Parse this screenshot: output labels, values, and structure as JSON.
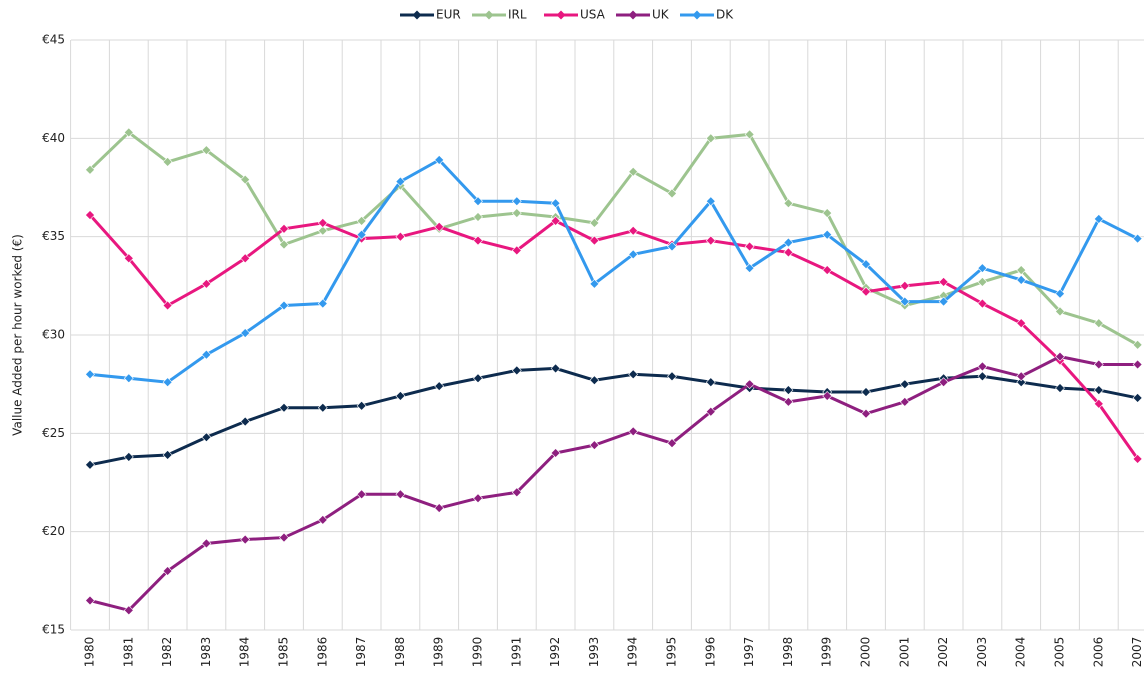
{
  "chart_data": {
    "type": "line",
    "y_label": "Vallue Added per hour worked (€)",
    "categories": [
      "1980",
      "1981",
      "1982",
      "1983",
      "1984",
      "1985",
      "1986",
      "1987",
      "1988",
      "1989",
      "1990",
      "1991",
      "1992",
      "1993",
      "1994",
      "1995",
      "1996",
      "1997",
      "1998",
      "1999",
      "2000",
      "2001",
      "2002",
      "2003",
      "2004",
      "2005",
      "2006",
      "2007"
    ],
    "series": [
      {
        "name": "EUR",
        "color": "#0d2b4e",
        "values": [
          23.4,
          23.8,
          23.9,
          24.8,
          25.6,
          26.3,
          26.3,
          26.4,
          26.9,
          27.4,
          27.8,
          28.2,
          28.3,
          27.7,
          28.0,
          27.9,
          27.6,
          27.3,
          27.2,
          27.1,
          27.1,
          27.5,
          27.8,
          27.9,
          27.6,
          27.3,
          27.2,
          26.8
        ]
      },
      {
        "name": "IRL",
        "color": "#9dc48f",
        "values": [
          38.4,
          40.3,
          38.8,
          39.4,
          37.9,
          34.6,
          35.3,
          35.8,
          37.6,
          35.4,
          36.0,
          36.2,
          36.0,
          35.7,
          38.3,
          37.2,
          40.0,
          40.2,
          36.7,
          36.2,
          32.4,
          31.5,
          32.0,
          32.7,
          33.3,
          31.2,
          30.6,
          29.5
        ]
      },
      {
        "name": "USA",
        "color": "#e8177f",
        "values": [
          36.1,
          33.9,
          31.5,
          32.6,
          33.9,
          35.4,
          35.7,
          34.9,
          35.0,
          35.5,
          34.8,
          34.3,
          35.8,
          34.8,
          35.3,
          34.6,
          34.8,
          34.5,
          34.2,
          33.3,
          32.2,
          32.5,
          32.7,
          31.6,
          30.6,
          28.7,
          26.5,
          23.7
        ]
      },
      {
        "name": "UK",
        "color": "#8e1f7f",
        "values": [
          16.5,
          16.0,
          18.0,
          19.4,
          19.6,
          19.7,
          20.6,
          21.9,
          21.9,
          21.2,
          21.7,
          22.0,
          24.0,
          24.4,
          25.1,
          24.5,
          26.1,
          27.5,
          26.6,
          26.9,
          26.0,
          26.6,
          27.6,
          28.4,
          27.9,
          28.9,
          28.5,
          28.5
        ]
      },
      {
        "name": "DK",
        "color": "#3399ee",
        "values": [
          28.0,
          27.8,
          27.6,
          29.0,
          30.1,
          31.5,
          31.6,
          35.1,
          37.8,
          38.9,
          36.8,
          36.8,
          36.7,
          32.6,
          34.1,
          34.5,
          36.8,
          33.4,
          34.7,
          35.1,
          33.6,
          31.7,
          31.7,
          33.4,
          32.8,
          32.1,
          35.9,
          34.9
        ]
      }
    ],
    "ylim": [
      15,
      45
    ],
    "yticks": [
      {
        "value": 15,
        "label": "€15"
      },
      {
        "value": 20,
        "label": "€20"
      },
      {
        "value": 25,
        "label": "€25"
      },
      {
        "value": 30,
        "label": "€30"
      },
      {
        "value": 35,
        "label": "€35"
      },
      {
        "value": 40,
        "label": "€40"
      },
      {
        "value": 45,
        "label": "€45"
      }
    ],
    "grid": true
  }
}
